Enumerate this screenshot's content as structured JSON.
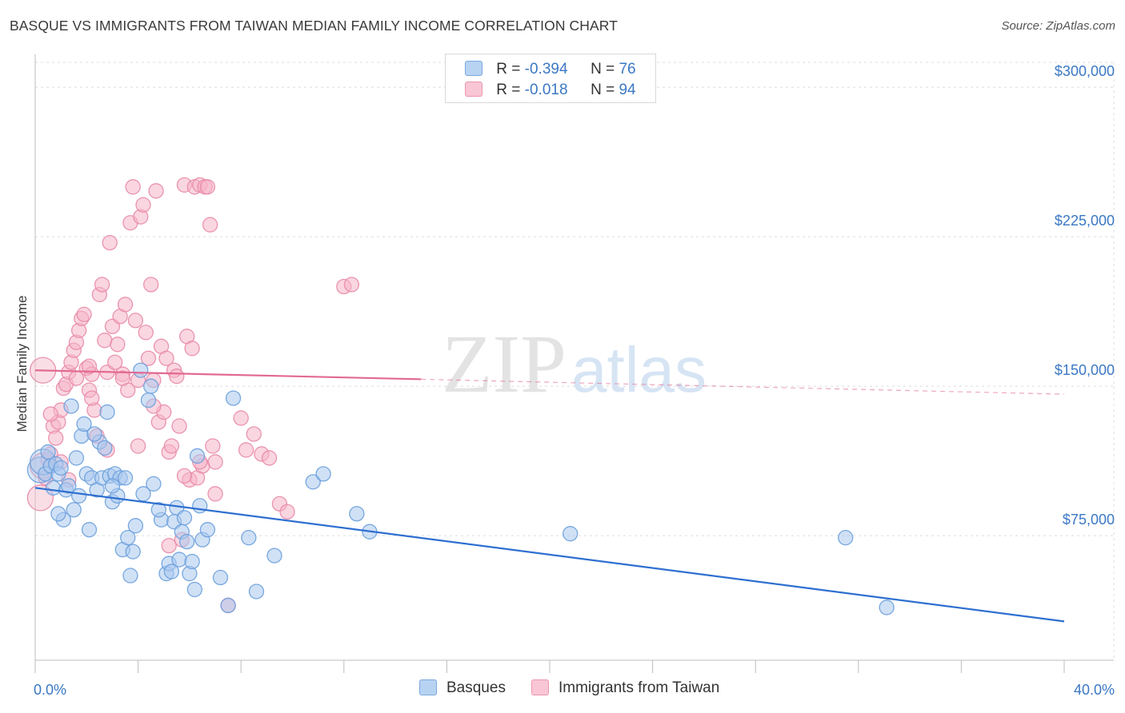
{
  "header": {
    "title": "BASQUE VS IMMIGRANTS FROM TAIWAN MEDIAN FAMILY INCOME CORRELATION CHART",
    "source": "Source: ZipAtlas.com"
  },
  "watermark": {
    "zip": "ZIP",
    "atlas": "atlas"
  },
  "legend": {
    "rows": [
      {
        "r_label": "R = ",
        "r_value": "-0.394",
        "n_label": "N = ",
        "n_value": "76"
      },
      {
        "r_label": "R = ",
        "r_value": "-0.018",
        "n_label": "N = ",
        "n_value": "94"
      }
    ]
  },
  "bottom_legend": {
    "items": [
      "Basques",
      "Immigrants from Taiwan"
    ]
  },
  "colors": {
    "blue_fill": "#a9c9ef",
    "blue_stroke": "#6a9fdc",
    "blue_line": "#2e6fd0",
    "pink_fill": "#f5b5c8",
    "pink_stroke": "#e88aa7",
    "pink_line": "#e26a92",
    "tick_text": "#3b78c4"
  },
  "chart_data": {
    "type": "scatter",
    "title": "BASQUE VS IMMIGRANTS FROM TAIWAN MEDIAN FAMILY INCOME CORRELATION CHART",
    "xlabel": "",
    "ylabel": "Median Family Income",
    "xlim": [
      0,
      40
    ],
    "ylim": [
      12500,
      312500
    ],
    "x_tick_labels": [
      "0.0%",
      "40.0%"
    ],
    "y_ticks": [
      75000,
      150000,
      225000,
      300000
    ],
    "y_tick_labels": [
      "$75,000",
      "$150,000",
      "$225,000",
      "$300,000"
    ],
    "grid": true,
    "legend_position": "top-center",
    "series": [
      {
        "name": "Basques",
        "r": -0.394,
        "n": 76,
        "trend": {
          "x": [
            0,
            40
          ],
          "y": [
            99000,
            32000
          ]
        },
        "points": [
          [
            0.2,
            108000
          ],
          [
            0.3,
            112000
          ],
          [
            0.4,
            106000
          ],
          [
            0.5,
            117000
          ],
          [
            0.6,
            110000
          ],
          [
            0.7,
            99000
          ],
          [
            0.8,
            111000
          ],
          [
            0.9,
            106000
          ],
          [
            1.0,
            109000
          ],
          [
            1.1,
            83000
          ],
          [
            1.2,
            98000
          ],
          [
            1.3,
            100000
          ],
          [
            1.5,
            88000
          ],
          [
            1.6,
            114000
          ],
          [
            1.7,
            95000
          ],
          [
            1.8,
            125000
          ],
          [
            1.9,
            131000
          ],
          [
            2.0,
            106000
          ],
          [
            2.1,
            78000
          ],
          [
            2.2,
            104000
          ],
          [
            2.4,
            98000
          ],
          [
            2.5,
            122000
          ],
          [
            2.6,
            104000
          ],
          [
            2.8,
            137000
          ],
          [
            2.9,
            105000
          ],
          [
            3.0,
            92000
          ],
          [
            3.1,
            106000
          ],
          [
            3.2,
            95000
          ],
          [
            3.3,
            104000
          ],
          [
            3.4,
            68000
          ],
          [
            3.6,
            74000
          ],
          [
            3.7,
            55000
          ],
          [
            3.8,
            67000
          ],
          [
            3.9,
            80000
          ],
          [
            4.1,
            158000
          ],
          [
            4.2,
            96000
          ],
          [
            4.4,
            143000
          ],
          [
            4.5,
            150000
          ],
          [
            4.6,
            101000
          ],
          [
            4.9,
            83000
          ],
          [
            5.1,
            56000
          ],
          [
            5.2,
            61000
          ],
          [
            5.4,
            82000
          ],
          [
            5.5,
            89000
          ],
          [
            5.6,
            63000
          ],
          [
            5.7,
            77000
          ],
          [
            5.9,
            72000
          ],
          [
            6.0,
            56000
          ],
          [
            6.1,
            62000
          ],
          [
            6.2,
            48000
          ],
          [
            6.3,
            115000
          ],
          [
            6.5,
            73000
          ],
          [
            6.7,
            78000
          ],
          [
            7.5,
            40000
          ],
          [
            7.7,
            144000
          ],
          [
            8.3,
            74000
          ],
          [
            8.6,
            47000
          ],
          [
            9.3,
            65000
          ],
          [
            10.8,
            102000
          ],
          [
            11.2,
            106000
          ],
          [
            12.5,
            86000
          ],
          [
            13.0,
            77000
          ],
          [
            20.8,
            76000
          ],
          [
            31.5,
            74000
          ],
          [
            33.1,
            39000
          ],
          [
            0.9,
            86000
          ],
          [
            1.4,
            140000
          ],
          [
            2.7,
            119000
          ],
          [
            3.5,
            104000
          ],
          [
            4.8,
            88000
          ],
          [
            5.3,
            57000
          ],
          [
            5.8,
            84000
          ],
          [
            6.4,
            90000
          ],
          [
            7.2,
            54000
          ],
          [
            2.3,
            126000
          ],
          [
            3.0,
            100000
          ]
        ]
      },
      {
        "name": "Immigrants from Taiwan",
        "r": -0.018,
        "n": 94,
        "trend": {
          "x": [
            0,
            40
          ],
          "y": [
            158000,
            146000
          ],
          "solid_until_x": 15
        },
        "points": [
          [
            0.2,
            94000
          ],
          [
            0.3,
            110000
          ],
          [
            0.4,
            104000
          ],
          [
            0.5,
            113000
          ],
          [
            0.6,
            116000
          ],
          [
            0.7,
            130000
          ],
          [
            0.8,
            124000
          ],
          [
            0.9,
            132000
          ],
          [
            1.0,
            138000
          ],
          [
            1.1,
            149000
          ],
          [
            1.2,
            151000
          ],
          [
            1.3,
            157000
          ],
          [
            1.4,
            162000
          ],
          [
            1.5,
            168000
          ],
          [
            1.6,
            172000
          ],
          [
            1.7,
            178000
          ],
          [
            1.8,
            184000
          ],
          [
            1.9,
            186000
          ],
          [
            2.0,
            159000
          ],
          [
            2.1,
            148000
          ],
          [
            2.2,
            156000
          ],
          [
            2.3,
            138000
          ],
          [
            2.4,
            125000
          ],
          [
            2.5,
            196000
          ],
          [
            2.6,
            201000
          ],
          [
            2.7,
            173000
          ],
          [
            2.8,
            157000
          ],
          [
            2.9,
            222000
          ],
          [
            3.0,
            180000
          ],
          [
            3.1,
            162000
          ],
          [
            3.2,
            171000
          ],
          [
            3.3,
            185000
          ],
          [
            3.4,
            156000
          ],
          [
            3.5,
            191000
          ],
          [
            3.6,
            148000
          ],
          [
            3.7,
            232000
          ],
          [
            3.8,
            250000
          ],
          [
            3.9,
            183000
          ],
          [
            4.0,
            153000
          ],
          [
            4.1,
            235000
          ],
          [
            4.2,
            241000
          ],
          [
            4.3,
            177000
          ],
          [
            4.4,
            164000
          ],
          [
            4.5,
            201000
          ],
          [
            4.6,
            153000
          ],
          [
            4.7,
            248000
          ],
          [
            4.8,
            132000
          ],
          [
            4.9,
            170000
          ],
          [
            5.0,
            137000
          ],
          [
            5.1,
            164000
          ],
          [
            5.2,
            117000
          ],
          [
            5.3,
            120000
          ],
          [
            5.4,
            158000
          ],
          [
            5.5,
            155000
          ],
          [
            5.6,
            130000
          ],
          [
            5.7,
            73000
          ],
          [
            5.8,
            251000
          ],
          [
            5.9,
            175000
          ],
          [
            6.0,
            103000
          ],
          [
            6.1,
            169000
          ],
          [
            6.2,
            250000
          ],
          [
            6.3,
            104000
          ],
          [
            6.4,
            251000
          ],
          [
            6.5,
            110000
          ],
          [
            6.6,
            250000
          ],
          [
            6.7,
            250000
          ],
          [
            6.8,
            231000
          ],
          [
            6.9,
            120000
          ],
          [
            7.0,
            112000
          ],
          [
            7.5,
            40000
          ],
          [
            8.0,
            134000
          ],
          [
            8.2,
            118000
          ],
          [
            8.5,
            126000
          ],
          [
            8.8,
            116000
          ],
          [
            9.1,
            114000
          ],
          [
            9.5,
            91000
          ],
          [
            9.8,
            87000
          ],
          [
            12.0,
            200000
          ],
          [
            12.3,
            201000
          ],
          [
            0.6,
            136000
          ],
          [
            1.0,
            112000
          ],
          [
            1.6,
            154000
          ],
          [
            2.2,
            144000
          ],
          [
            2.8,
            118000
          ],
          [
            3.4,
            154000
          ],
          [
            4.0,
            120000
          ],
          [
            4.6,
            140000
          ],
          [
            5.2,
            70000
          ],
          [
            5.8,
            105000
          ],
          [
            6.4,
            112000
          ],
          [
            7.0,
            96000
          ],
          [
            0.3,
            158000
          ],
          [
            1.3,
            103000
          ],
          [
            2.1,
            160000
          ]
        ]
      }
    ]
  }
}
